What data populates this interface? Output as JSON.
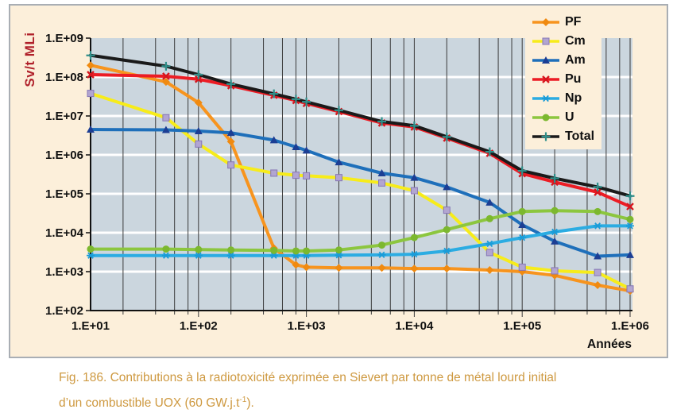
{
  "figure": {
    "caption_line1": "Fig. 186. Contributions à la radiotoxicité exprimée en Sievert par tonne de métal lourd initial",
    "caption_line2_pre": "d’un combustible UOX (60 GW.j.t",
    "caption_line2_sup": "-1",
    "caption_line2_post": ")."
  },
  "colors": {
    "panel_bg": "#FCEFDA",
    "plot_bg": "#CBD6DE",
    "grid_h": "#FFFFFF",
    "grid_v": "#3A3A3A",
    "axis": "#111111",
    "y_title": "#B0212B",
    "caption": "#CE9940"
  },
  "chart_data": {
    "type": "line",
    "title": "",
    "xlabel": "Années",
    "ylabel": "Sv/t MLi",
    "x_scale": "log",
    "y_scale": "log",
    "xlim": [
      10,
      1000000
    ],
    "ylim": [
      100,
      1000000000
    ],
    "x_ticks": [
      "1.E+01",
      "1.E+02",
      "1.E+03",
      "1.E+04",
      "1.E+05",
      "1.E+06"
    ],
    "y_ticks": [
      "1.E+09",
      "1.E+08",
      "1.E+07",
      "1.E+06",
      "1.E+05",
      "1.E+04",
      "1.E+03",
      "1.E+02"
    ],
    "grid": {
      "horizontal": "decades-white",
      "vertical_minors": [
        2,
        4,
        6,
        8
      ]
    },
    "legend_position": "top-right",
    "x": [
      10,
      50,
      100,
      200,
      500,
      800,
      1000,
      2000,
      5000,
      10000,
      20000,
      50000,
      100000,
      200000,
      500000,
      1000000
    ],
    "series": [
      {
        "name": "PF",
        "color": "#F7941E",
        "marker": "diamond",
        "marker_color": "#F08A10",
        "values": [
          200000000.0,
          75000000.0,
          22000000.0,
          2200000.0,
          4000.0,
          1500.0,
          1300.0,
          1250.0,
          1250.0,
          1200.0,
          1200.0,
          1100.0,
          1000.0,
          800.0,
          450.0,
          320.0
        ]
      },
      {
        "name": "Cm",
        "color": "#F7EC1A",
        "marker": "square",
        "marker_color": "#B2A5D1",
        "values": [
          38000000.0,
          9000000.0,
          1900000.0,
          550000.0,
          340000.0,
          300000.0,
          290000.0,
          260000.0,
          190000.0,
          120000.0,
          38000.0,
          3100.0,
          1300.0,
          1050.0,
          950.0,
          360.0
        ]
      },
      {
        "name": "Am",
        "color": "#1E6FBA",
        "marker": "triangle",
        "marker_color": "#1C3E94",
        "values": [
          4500000.0,
          4400000.0,
          4100000.0,
          3700000.0,
          2400000.0,
          1600000.0,
          1300000.0,
          650000.0,
          340000.0,
          260000.0,
          150000.0,
          60000.0,
          16000.0,
          6000.0,
          2500.0,
          2700.0
        ]
      },
      {
        "name": "Pu",
        "color": "#EC1C24",
        "marker": "x",
        "marker_color": "#D6161E",
        "values": [
          115000000.0,
          105000000.0,
          88000000.0,
          60000000.0,
          34000000.0,
          25000000.0,
          21000000.0,
          13000000.0,
          6600000.0,
          5200000.0,
          2700000.0,
          1100000.0,
          330000.0,
          200000.0,
          110000.0,
          47000.0
        ]
      },
      {
        "name": "Np",
        "color": "#2BACE2",
        "marker": "asterisk",
        "marker_color": "#1A9CD8",
        "values": [
          2600.0,
          2600.0,
          2600.0,
          2600.0,
          2600.0,
          2600.0,
          2600.0,
          2650.0,
          2700.0,
          2800.0,
          3400.0,
          5200.0,
          7500.0,
          10500.0,
          15000.0,
          15000.0
        ]
      },
      {
        "name": "U",
        "color": "#8CC63E",
        "marker": "circle",
        "marker_color": "#7CB82F",
        "values": [
          3800.0,
          3800.0,
          3700.0,
          3600.0,
          3500.0,
          3400.0,
          3400.0,
          3600.0,
          4800.0,
          7500.0,
          12000.0,
          23000.0,
          35000.0,
          37000.0,
          35000.0,
          22000.0
        ]
      },
      {
        "name": "Total",
        "color": "#1A1A1A",
        "marker": "plus",
        "marker_color": "#2F8F8A",
        "values": [
          360000000.0,
          190000000.0,
          115000000.0,
          66000000.0,
          37000000.0,
          27000000.0,
          23000000.0,
          14000000.0,
          7200000.0,
          5600000.0,
          2900000.0,
          1200000.0,
          390000.0,
          250000.0,
          150000.0,
          88000.0
        ]
      }
    ]
  }
}
